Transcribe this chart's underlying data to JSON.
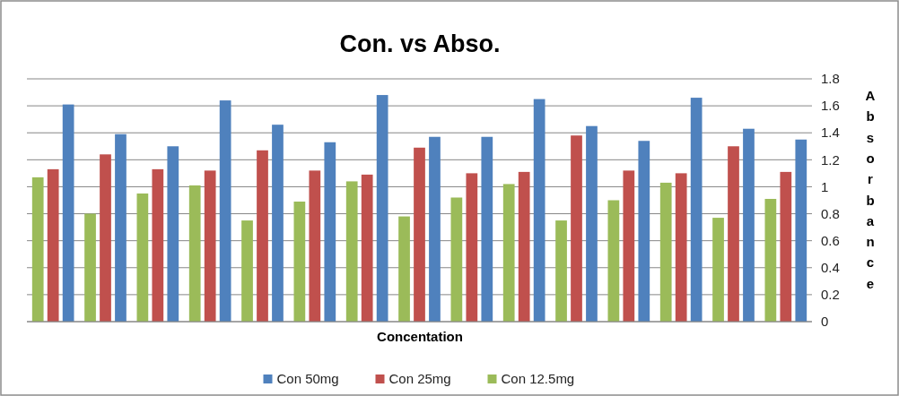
{
  "chart_data": {
    "type": "bar",
    "title": "Con. vs Abso.",
    "xlabel": "Concentation",
    "ylabel": "Absorbance",
    "categories": [
      null,
      null,
      null,
      null,
      null,
      null,
      null,
      null,
      null,
      null,
      null,
      null,
      null,
      null,
      null
    ],
    "series": [
      {
        "name": "Con 12.5mg",
        "color": "#9bbb59",
        "values": [
          1.07,
          0.8,
          0.95,
          1.01,
          0.75,
          0.89,
          1.04,
          0.78,
          0.92,
          1.02,
          0.75,
          0.9,
          1.03,
          0.77,
          0.91
        ]
      },
      {
        "name": "Con 25mg",
        "color": "#c0504d",
        "values": [
          1.13,
          1.24,
          1.13,
          1.12,
          1.27,
          1.12,
          1.09,
          1.29,
          1.1,
          1.11,
          1.38,
          1.12,
          1.1,
          1.3,
          1.11
        ]
      },
      {
        "name": "Con 50mg",
        "color": "#4f81bd",
        "values": [
          1.61,
          1.39,
          1.3,
          1.64,
          1.46,
          1.33,
          1.68,
          1.37,
          1.37,
          1.65,
          1.45,
          1.34,
          1.66,
          1.43,
          1.35
        ]
      }
    ],
    "ylim": [
      0,
      1.8
    ],
    "yticks": [
      0,
      0.2,
      0.4,
      0.6,
      0.8,
      1,
      1.2,
      1.4,
      1.6,
      1.8
    ],
    "grid": true,
    "legend": "bottom"
  }
}
